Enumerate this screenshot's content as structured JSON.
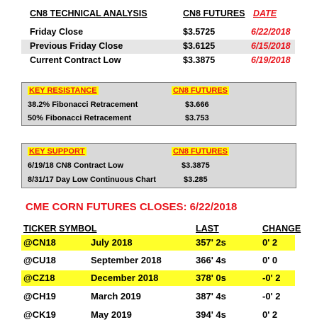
{
  "technical": {
    "header": {
      "title": "CN8 TECHNICAL ANALYSIS",
      "futures": "CN8 FUTURES",
      "date": "DATE"
    },
    "rows": [
      {
        "label": "Friday Close",
        "price": "$3.5725",
        "date": "6/22/2018"
      },
      {
        "label": "Previous Friday Close",
        "price": "$3.6125",
        "date": "6/15/2018"
      },
      {
        "label": "Current Contract Low",
        "price": "$3.3875",
        "date": "6/19/2018"
      }
    ]
  },
  "resistance": {
    "title": "KEY RESISTANCE",
    "futures": "CN8 FUTURES",
    "rows": [
      {
        "label": "38.2% Fibonacci Retracement",
        "price": "$3.666"
      },
      {
        "label": "50% Fibonacci Retracement",
        "price": "$3.753"
      }
    ]
  },
  "support": {
    "title": "KEY SUPPORT",
    "futures": "CN8 FUTURES",
    "rows": [
      {
        "label": "6/19/18 CN8 Contract Low",
        "price": "$3.3875"
      },
      {
        "label": "8/31/17 Day Low Continuous Chart",
        "price": "$3.285"
      }
    ]
  },
  "closes": {
    "title": "CME CORN FUTURES CLOSES:  6/22/2018",
    "headers": {
      "ticker": "TICKER SYMBOL",
      "last": "LAST",
      "change": "CHANGE"
    },
    "rows": [
      {
        "ticker": "@CN18",
        "month": "July 2018",
        "last": "357' 2s",
        "change": "0' 2",
        "highlight": true
      },
      {
        "ticker": "@CU18",
        "month": "September 2018",
        "last": "366' 4s",
        "change": "0' 0",
        "highlight": false
      },
      {
        "ticker": "@CZ18",
        "month": "December 2018",
        "last": "378' 0s",
        "change": "-0' 2",
        "highlight": true
      },
      {
        "ticker": "@CH19",
        "month": "March 2019",
        "last": "387' 4s",
        "change": "-0' 2",
        "highlight": false
      },
      {
        "ticker": "@CK19",
        "month": "May 2019",
        "last": "394' 4s",
        "change": "0' 2",
        "highlight": false
      }
    ]
  },
  "colors": {
    "red": "#e8141c",
    "highlight": "#ffff2a",
    "box": "#d9d9d9",
    "shade": "#e6e6e6"
  }
}
